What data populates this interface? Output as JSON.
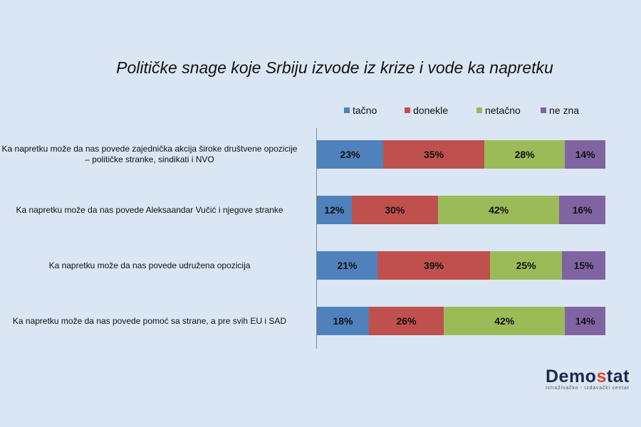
{
  "chart_data": {
    "type": "bar",
    "stacked": true,
    "orientation": "horizontal",
    "title": "Političke snage koje Srbiju izvode iz krize i vode ka napretku",
    "categories": [
      "Ka napretku može da nas povede zajednička akcija široke društvene opozicije – političke stranke, sindikati i NVO",
      "Ka napretku može da nas povede Aleksaandar Vučić i njegove stranke",
      "Ka napretku može da nas povede udružena opozicija",
      "Ka napretku može da nas povede pomoć sa strane, a pre svih EU i SAD"
    ],
    "category_lines": [
      [
        "Ka napretku može da nas povede zajednička akcija široke društvene opozicije",
        "– političke stranke, sindikati i NVO"
      ],
      [
        "Ka napretku može da nas povede Aleksaandar Vučić i njegove stranke"
      ],
      [
        "Ka napretku može da nas povede udružena opozicija"
      ],
      [
        "Ka napretku može da nas povede pomoć sa strane, a pre svih EU i SAD"
      ]
    ],
    "series": [
      {
        "name": "tačno",
        "color": "#4f81bd",
        "values": [
          23,
          12,
          21,
          18
        ]
      },
      {
        "name": "donekle",
        "color": "#c0504d",
        "values": [
          35,
          30,
          39,
          26
        ]
      },
      {
        "name": "netačno",
        "color": "#9bbb59",
        "values": [
          28,
          42,
          25,
          42
        ]
      },
      {
        "name": "ne zna",
        "color": "#8064a2",
        "values": [
          14,
          16,
          15,
          14
        ]
      }
    ],
    "value_suffix": "%",
    "legend_position": "top",
    "grid": false
  },
  "logo": {
    "name": "Demostat",
    "subtitle": "istraživačko - izdavački centar"
  }
}
